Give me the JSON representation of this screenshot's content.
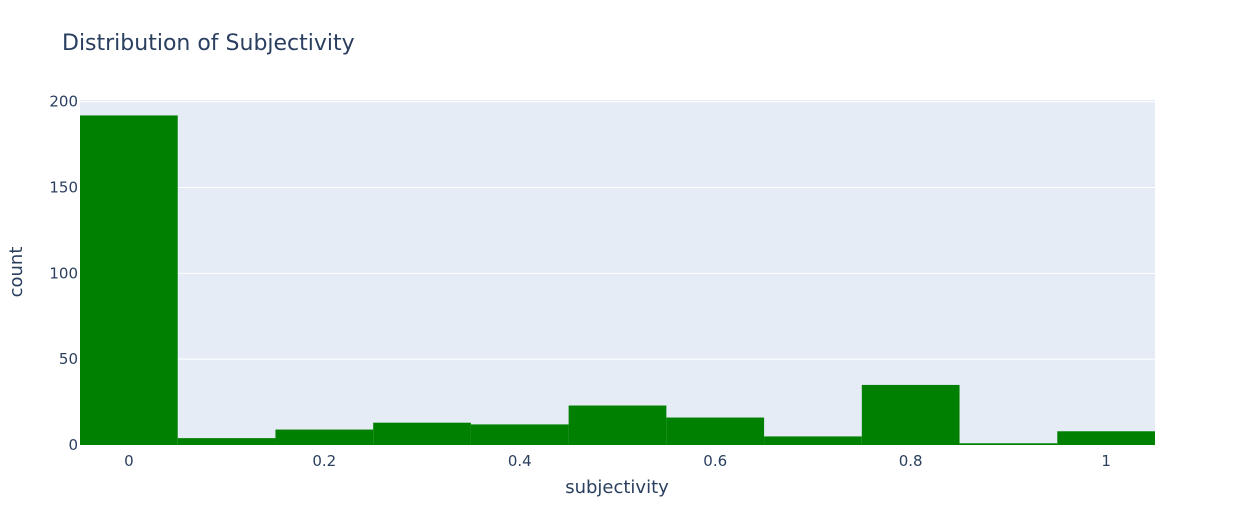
{
  "chart_data": {
    "type": "bar",
    "title": "Distribution of Subjectivity",
    "xlabel": "subjectivity",
    "ylabel": "count",
    "bin_width": 0.1,
    "bins": [
      {
        "start": -0.05,
        "end": 0.05,
        "count": 192
      },
      {
        "start": 0.05,
        "end": 0.15,
        "count": 4
      },
      {
        "start": 0.15,
        "end": 0.25,
        "count": 9
      },
      {
        "start": 0.25,
        "end": 0.35,
        "count": 13
      },
      {
        "start": 0.35,
        "end": 0.45,
        "count": 12
      },
      {
        "start": 0.45,
        "end": 0.55,
        "count": 23
      },
      {
        "start": 0.55,
        "end": 0.65,
        "count": 16
      },
      {
        "start": 0.65,
        "end": 0.75,
        "count": 5
      },
      {
        "start": 0.75,
        "end": 0.85,
        "count": 35
      },
      {
        "start": 0.85,
        "end": 0.95,
        "count": 1
      },
      {
        "start": 0.95,
        "end": 1.05,
        "count": 8
      }
    ],
    "xlim": [
      -0.05,
      1.05
    ],
    "ylim": [
      0,
      201
    ],
    "xticks": [
      0,
      0.2,
      0.4,
      0.6,
      0.8,
      1
    ],
    "xtick_labels": [
      "0",
      "0.2",
      "0.4",
      "0.6",
      "0.8",
      "1"
    ],
    "yticks": [
      0,
      50,
      100,
      150,
      200
    ],
    "ytick_labels": [
      "0",
      "50",
      "100",
      "150",
      "200"
    ],
    "grid": true,
    "colors": {
      "bar": "#008000",
      "plot_background": "#e5ecf6",
      "grid": "#ffffff",
      "text": "#2a3f5f"
    }
  }
}
